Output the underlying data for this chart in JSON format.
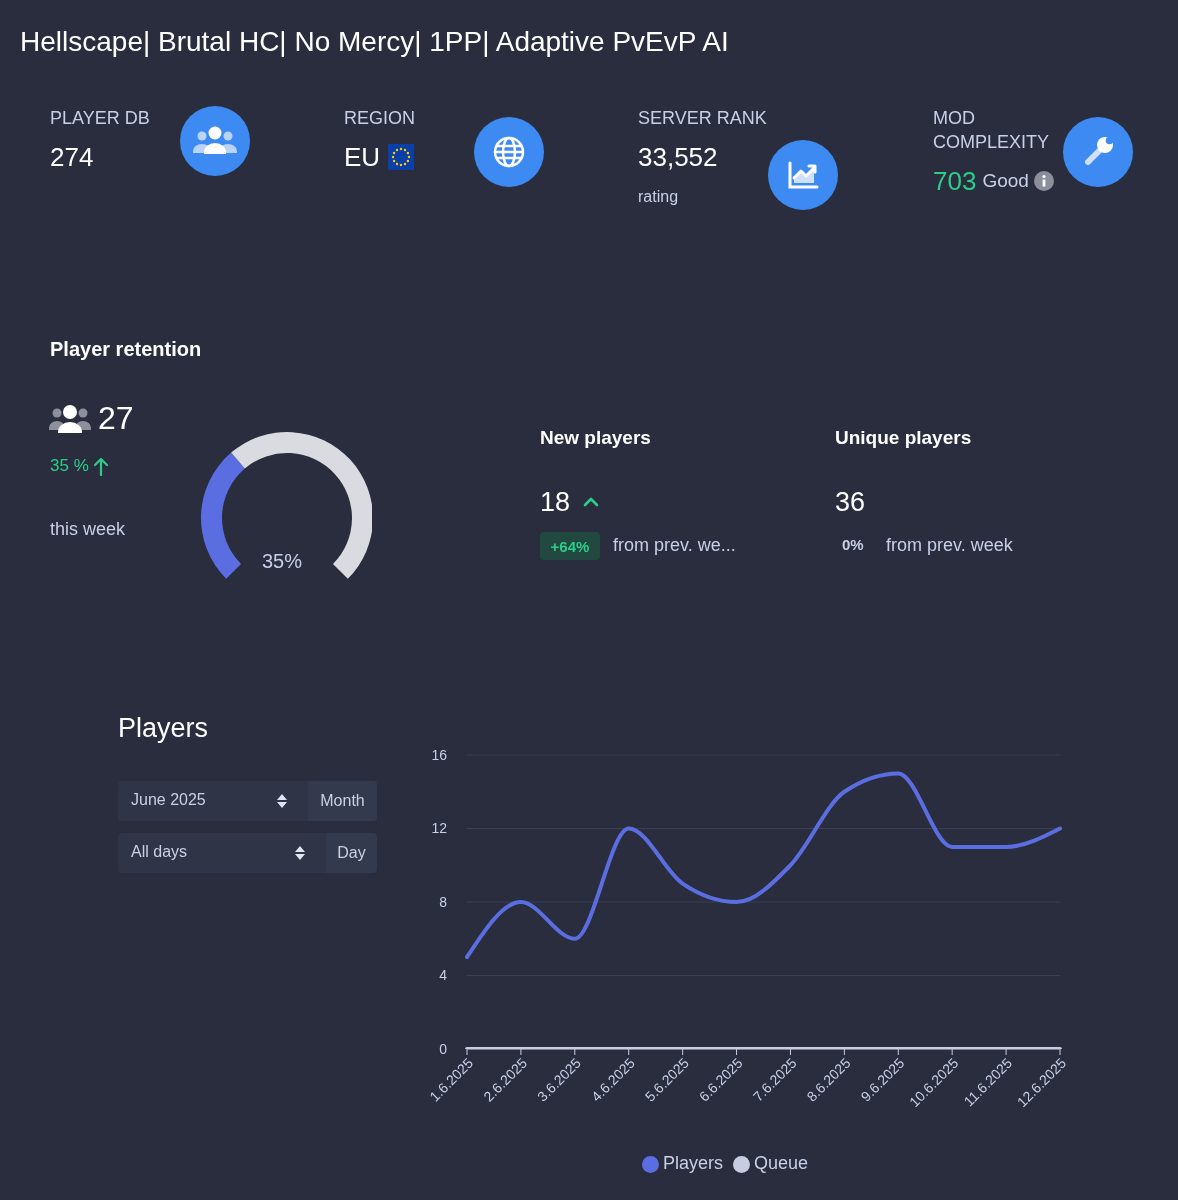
{
  "chart_data": [
    {
      "type": "other",
      "title": "Hellscape| Brutal HC| No Mercy| 1PP| Adaptive PvEvP AI",
      "categories": [
        "PLAYER DB",
        "REGION",
        "SERVER RANK",
        "MOD COMPLEXITY"
      ],
      "value_labels": [
        "274",
        "EU",
        "33,552",
        "703"
      ],
      "annotations": [
        "rating",
        "Good"
      ]
    },
    {
      "type": "donut",
      "title": "Player retention",
      "categories": [
        null,
        null
      ],
      "values": [
        35,
        65
      ],
      "colors": [
        "#5b6ee1",
        "#d9dbe1"
      ],
      "annotations": [
        "27",
        "35 %",
        "this week",
        "35%"
      ]
    },
    {
      "type": "other",
      "categories": [
        "New players",
        "Unique players"
      ],
      "values": [
        18,
        36
      ],
      "data_labels": true,
      "annotations": [
        "+64%",
        "from prev. we...",
        "0%",
        "from prev. week"
      ]
    },
    {
      "type": "line",
      "annotations": [
        "Players",
        "June 2025",
        "Month",
        "All days",
        "Day"
      ],
      "categories": [
        "1.6.2025",
        "2.6.2025",
        "3.6.2025",
        "4.6.2025",
        "5.6.2025",
        "6.6.2025",
        "7.6.2025",
        "8.6.2025",
        "9.6.2025",
        "10.6.2025",
        "11.6.2025",
        "12.6.2025"
      ],
      "series": [
        {
          "name": "Players",
          "color": "#5b6ee1",
          "values": [
            5,
            8,
            6,
            12,
            9,
            8,
            10,
            14,
            15,
            11,
            11,
            12
          ]
        },
        {
          "name": "Queue",
          "color": "#c8cce0",
          "values": [
            0,
            0,
            0,
            0,
            0,
            0,
            0,
            0,
            0,
            0,
            0,
            0
          ]
        }
      ],
      "ylim": [
        0,
        16
      ],
      "yticks": [
        0,
        4,
        8,
        12,
        16
      ],
      "grid": "y",
      "legend": "bottom"
    }
  ]
}
